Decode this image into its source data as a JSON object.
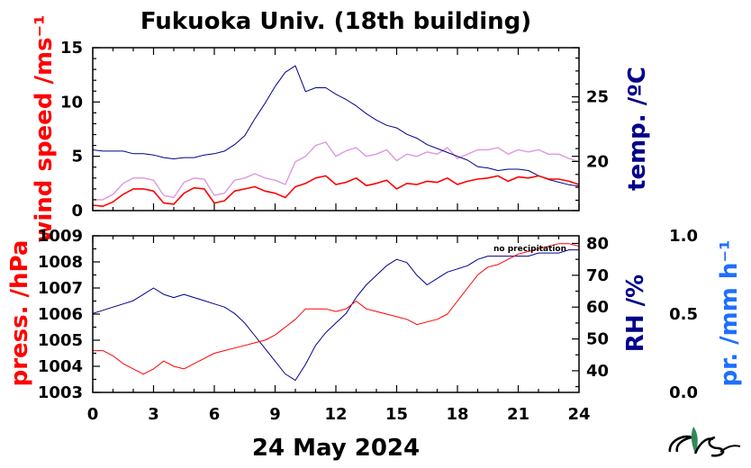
{
  "title": "Fukuoka Univ. (18th building)",
  "date_label": "24 May 2024",
  "note": "no precipitation",
  "colors": {
    "wind": "#ff0000",
    "wind_gust": "#dd99dd",
    "temp": "#00008b",
    "press": "#ff0000",
    "rh": "#00008b",
    "precip": "#1e6fff"
  },
  "chart_data": [
    {
      "type": "line",
      "ylabel_left": "wind speed /ms⁻¹",
      "ylabel_right": "temp. /ºC",
      "x_range": [
        0,
        24
      ],
      "x_ticks": [
        "0",
        "3",
        "6",
        "9",
        "12",
        "15",
        "18",
        "21",
        "24"
      ],
      "y_left_range": [
        0,
        15
      ],
      "y_left_ticks": [
        "0",
        "5",
        "10",
        "15"
      ],
      "y_right_range": [
        16.2,
        28.8
      ],
      "y_right_ticks": [
        "20",
        "25"
      ],
      "series": [
        {
          "name": "wind speed",
          "axis": "left",
          "x": [
            0,
            0.5,
            1,
            1.5,
            2,
            2.5,
            3,
            3.5,
            4,
            4.5,
            5,
            5.5,
            6,
            6.5,
            7,
            7.5,
            8,
            8.5,
            9,
            9.5,
            10,
            10.5,
            11,
            11.5,
            12,
            12.5,
            13,
            13.5,
            14,
            14.5,
            15,
            15.5,
            16,
            16.5,
            17,
            17.5,
            18,
            18.5,
            19,
            19.5,
            20,
            20.5,
            21,
            21.5,
            22,
            22.5,
            23,
            23.5,
            24
          ],
          "y": [
            0.5,
            0.4,
            0.8,
            1.5,
            2,
            2,
            1.8,
            0.7,
            0.6,
            1.6,
            2.1,
            2,
            0.7,
            0.9,
            1.8,
            2,
            2.2,
            1.8,
            1.6,
            1.2,
            2.2,
            2.5,
            3,
            3.2,
            2.4,
            2.6,
            3,
            2.3,
            2.5,
            2.8,
            2,
            2.5,
            2.4,
            2.7,
            2.6,
            3,
            2.4,
            2.7,
            2.9,
            3,
            3.2,
            2.7,
            3.1,
            3,
            3.2,
            2.9,
            2.9,
            2.7,
            2.4
          ]
        },
        {
          "name": "gust",
          "axis": "left",
          "x": [
            0,
            0.5,
            1,
            1.5,
            2,
            2.5,
            3,
            3.5,
            4,
            4.5,
            5,
            5.5,
            6,
            6.5,
            7,
            7.5,
            8,
            8.5,
            9,
            9.5,
            10,
            10.5,
            11,
            11.5,
            12,
            12.5,
            13,
            13.5,
            14,
            14.5,
            15,
            15.5,
            16,
            16.5,
            17,
            17.5,
            18,
            18.5,
            19,
            19.5,
            20,
            20.5,
            21,
            21.5,
            22,
            22.5,
            23,
            23.5,
            24
          ],
          "y": [
            1,
            1,
            1.5,
            2.5,
            3,
            3,
            2.8,
            1.4,
            1.2,
            2.6,
            3,
            2.9,
            1.4,
            1.6,
            2.8,
            3,
            3.4,
            3,
            2.8,
            2.4,
            4.5,
            5,
            6,
            6.3,
            5,
            5.5,
            5.8,
            5,
            5.2,
            5.6,
            4.6,
            5.2,
            5,
            5.4,
            5.2,
            5.8,
            4.8,
            5.2,
            5.6,
            5.6,
            5.8,
            5.2,
            5.6,
            5.4,
            5.6,
            5.2,
            5.2,
            4.8,
            4.5
          ]
        },
        {
          "name": "temperature",
          "axis": "right",
          "x": [
            0,
            0.5,
            1,
            1.5,
            2,
            2.5,
            3,
            3.5,
            4,
            4.5,
            5,
            5.5,
            6,
            6.5,
            7,
            7.5,
            8,
            8.5,
            9,
            9.5,
            10,
            10.5,
            11,
            11.5,
            12,
            12.5,
            13,
            13.5,
            14,
            14.5,
            15,
            15.5,
            16,
            16.5,
            17,
            17.5,
            18,
            18.5,
            19,
            19.5,
            20,
            20.5,
            21,
            21.5,
            22,
            22.5,
            23,
            23.5,
            24
          ],
          "y": [
            20.9,
            20.8,
            20.8,
            20.8,
            20.6,
            20.6,
            20.5,
            20.3,
            20.2,
            20.3,
            20.3,
            20.5,
            20.6,
            20.8,
            21.3,
            22,
            23.3,
            24.5,
            25.8,
            26.9,
            27.4,
            25.4,
            25.7,
            25.7,
            25.2,
            24.8,
            24.3,
            23.7,
            23.2,
            22.8,
            22.6,
            22.1,
            21.8,
            21.3,
            21,
            20.7,
            20.4,
            20.1,
            19.6,
            19.5,
            19.3,
            19.4,
            19.4,
            19.3,
            18.9,
            18.6,
            18.4,
            18.2,
            18.1
          ]
        }
      ]
    },
    {
      "type": "line",
      "ylabel_left": "press. /hPa",
      "ylabel_right": "RH /%",
      "ylabel_right2": "pr. /mm h⁻¹",
      "x_range": [
        0,
        24
      ],
      "x_ticks": [
        "0",
        "3",
        "6",
        "9",
        "12",
        "15",
        "18",
        "21",
        "24"
      ],
      "x_label": "24 May 2024",
      "y_left_range": [
        1003,
        1009
      ],
      "y_left_ticks": [
        "1003",
        "1004",
        "1005",
        "1006",
        "1007",
        "1008",
        "1009"
      ],
      "y_right_range": [
        33.2,
        82.4
      ],
      "y_right_ticks": [
        "40",
        "50",
        "60",
        "70",
        "80"
      ],
      "y_right2_range": [
        0,
        1
      ],
      "y_right2_ticks": [
        "0.0",
        "0.5",
        "1.0"
      ],
      "series": [
        {
          "name": "pressure",
          "axis": "left",
          "x": [
            0,
            0.5,
            1,
            1.5,
            2,
            2.5,
            3,
            3.5,
            4,
            4.5,
            5,
            5.5,
            6,
            6.5,
            7,
            7.5,
            8,
            8.5,
            9,
            9.5,
            10,
            10.5,
            11,
            11.5,
            12,
            12.5,
            13,
            13.5,
            14,
            14.5,
            15,
            15.5,
            16,
            16.5,
            17,
            17.5,
            18,
            18.5,
            19,
            19.5,
            20,
            20.5,
            21,
            21.5,
            22,
            22.5,
            23,
            23.5,
            24
          ],
          "y": [
            1004.6,
            1004.6,
            1004.4,
            1004.1,
            1003.9,
            1003.7,
            1003.9,
            1004.2,
            1004,
            1003.9,
            1004.1,
            1004.3,
            1004.5,
            1004.6,
            1004.7,
            1004.8,
            1004.9,
            1005,
            1005.2,
            1005.5,
            1005.8,
            1006.2,
            1006.2,
            1006.2,
            1006.1,
            1006.2,
            1006.5,
            1006.2,
            1006.1,
            1006,
            1005.9,
            1005.8,
            1005.6,
            1005.7,
            1005.8,
            1006,
            1006.5,
            1007,
            1007.5,
            1007.8,
            1007.9,
            1008.1,
            1008.3,
            1008.4,
            1008.5,
            1008.6,
            1008.7,
            1008.7,
            1008.6
          ]
        },
        {
          "name": "relative humidity",
          "axis": "right",
          "x": [
            0,
            0.5,
            1,
            1.5,
            2,
            2.5,
            3,
            3.5,
            4,
            4.5,
            5,
            5.5,
            6,
            6.5,
            7,
            7.5,
            8,
            8.5,
            9,
            9.5,
            10,
            10.5,
            11,
            11.5,
            12,
            12.5,
            13,
            13.5,
            14,
            14.5,
            15,
            15.5,
            16,
            16.5,
            17,
            17.5,
            18,
            18.5,
            19,
            19.5,
            20,
            20.5,
            21,
            21.5,
            22,
            22.5,
            23,
            23.5,
            24
          ],
          "y": [
            58,
            59,
            60,
            61,
            62,
            64,
            66,
            64,
            63,
            64,
            63,
            62,
            61,
            60,
            58,
            55,
            51,
            47,
            43,
            39,
            37,
            42,
            48,
            52,
            55,
            58,
            63,
            67,
            70,
            73,
            75,
            74,
            70,
            67,
            69,
            71,
            72,
            73,
            75,
            76,
            76,
            76,
            76,
            76,
            77,
            77,
            77,
            78,
            78
          ]
        }
      ]
    }
  ]
}
